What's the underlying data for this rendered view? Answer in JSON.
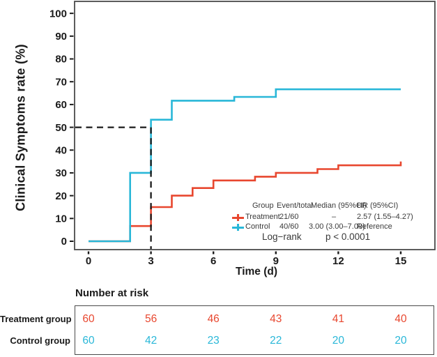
{
  "figure": {
    "y_axis_label": "Clinical Symptoms rate (%)",
    "x_axis_label": "Time (d)"
  },
  "chart_data": {
    "type": "line",
    "subtype": "step-survival-incidence",
    "title": "",
    "xlabel": "Time (d)",
    "ylabel": "Clinical Symptoms rate (%)",
    "xlim": [
      -0.7,
      16.6
    ],
    "ylim": [
      -3.5,
      105
    ],
    "x_ticks": [
      0,
      3,
      6,
      9,
      12,
      15
    ],
    "y_ticks": [
      0,
      10,
      20,
      30,
      40,
      50,
      60,
      70,
      80,
      90,
      100
    ],
    "grid": false,
    "legend_position": "inside bottom-right",
    "series": [
      {
        "name": "Treatment",
        "color": "#E8472F",
        "points": [
          [
            0,
            0
          ],
          [
            2,
            6.667
          ],
          [
            3,
            15
          ],
          [
            4,
            20
          ],
          [
            5,
            23.333
          ],
          [
            6,
            26.667
          ],
          [
            8,
            28.333
          ],
          [
            9,
            30
          ],
          [
            11,
            31.667
          ],
          [
            12,
            33.333
          ],
          [
            15,
            35
          ]
        ]
      },
      {
        "name": "Control",
        "color": "#29B7D8",
        "points": [
          [
            0,
            0
          ],
          [
            2,
            30
          ],
          [
            3,
            53.333
          ],
          [
            4,
            61.667
          ],
          [
            7,
            63.333
          ],
          [
            9,
            66.667
          ],
          [
            15,
            66.667
          ]
        ]
      }
    ],
    "reference_lines": {
      "horizontal_pct": 50,
      "vertical_day": 3,
      "style": "dashed",
      "color": "#1a1a1a"
    }
  },
  "legend": {
    "headers": [
      "Group",
      "Event/total",
      "Median (95%CI)",
      "HR (95%CI)"
    ],
    "rows": [
      {
        "group": "Treatment",
        "event_total": "21/60",
        "median": "–",
        "hr": "2.57 (1.55–4.27)",
        "color": "#E8472F"
      },
      {
        "group": "Control",
        "event_total": "40/60",
        "median": "3.00 (3.00–7.00)",
        "hr": "Reference",
        "color": "#29B7D8"
      }
    ],
    "test_label": "Log−rank",
    "p_value": "p < 0.0001"
  },
  "risk_table": {
    "title": "Number at risk",
    "rows": [
      {
        "label": "Treatment group",
        "color": "#E8472F",
        "values": [
          "60",
          "56",
          "46",
          "43",
          "41",
          "40"
        ]
      },
      {
        "label": "Control group",
        "color": "#29B7D8",
        "values": [
          "60",
          "42",
          "23",
          "22",
          "20",
          "20"
        ]
      }
    ]
  },
  "colors": {
    "treatment": "#E8472F",
    "control": "#29B7D8",
    "frame": "#4a4a4a",
    "text": "#1a1a1a",
    "legend_text": "#3a3a3a"
  }
}
